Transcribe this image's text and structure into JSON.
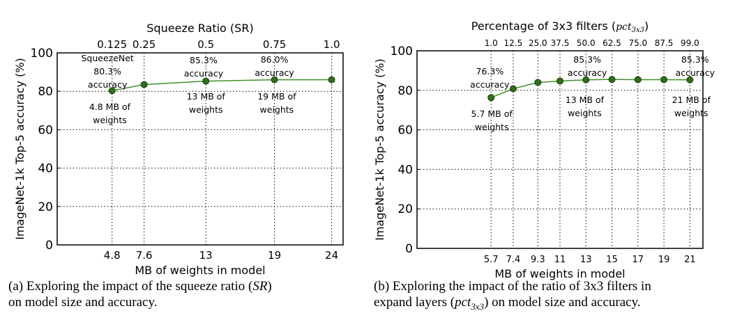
{
  "chart_data": [
    {
      "type": "line",
      "title": "",
      "top_axis_label": "Squeeze Ratio (SR)",
      "top_tick_labels": [
        "0.125",
        "0.25",
        "0.5",
        "0.75",
        "1.0"
      ],
      "xlabel": "MB of weights in model",
      "ylabel": "ImageNet-1k Top-5 accuracy (%)",
      "x": [
        4.8,
        7.6,
        13,
        19,
        24
      ],
      "x_tick_labels": [
        "4.8",
        "7.6",
        "13",
        "19",
        "24"
      ],
      "y": [
        80.3,
        83.5,
        85.3,
        86.0,
        86.0
      ],
      "xlim": [
        0,
        25
      ],
      "ylim": [
        0,
        100
      ],
      "yticks": [
        0,
        20,
        40,
        60,
        80,
        100
      ],
      "grid": true,
      "series_color": "#3f8f2a",
      "marker_color": "#2f6f1a",
      "annotations": [
        {
          "lines": [
            "SqueezeNet",
            "80.3%",
            "accuracy"
          ],
          "x": 4.4,
          "y": 95.7
        },
        {
          "lines": [
            "4.8 MB of",
            "weights"
          ],
          "x": 4.6,
          "y": 70.3
        },
        {
          "lines": [
            "85.3%",
            "accuracy"
          ],
          "x": 12.8,
          "y": 94.6
        },
        {
          "lines": [
            "13 MB of",
            "weights"
          ],
          "x": 13.0,
          "y": 75.7
        },
        {
          "lines": [
            "86.0%",
            "accuracy"
          ],
          "x": 19.0,
          "y": 94.9
        },
        {
          "lines": [
            "19 MB of",
            "weights"
          ],
          "x": 19.2,
          "y": 75.7
        }
      ],
      "caption": {
        "prefix": "(a) Exploring the impact of the squeeze ratio (",
        "math": "SR",
        "suffix": ")",
        "line2": "on model size and accuracy."
      }
    },
    {
      "type": "line",
      "title": "",
      "top_axis_label": "Percentage of 3x3 filters (",
      "top_axis_math": "pct",
      "top_axis_sub": "3x3",
      "top_axis_close": ")",
      "top_tick_labels": [
        "1.0",
        "12.5",
        "25.0",
        "37.5",
        "50.0",
        "62.5",
        "75.0",
        "87.5",
        "99.0"
      ],
      "xlabel": "MB of weights in model",
      "ylabel": "ImageNet-1k Top-5 accuracy (%)",
      "x": [
        5.7,
        7.4,
        9.3,
        11,
        13,
        15,
        17,
        19,
        21
      ],
      "x_tick_labels": [
        "5.7",
        "7.4",
        "9.3",
        "11",
        "13",
        "15",
        "17",
        "19",
        "21"
      ],
      "y": [
        76.3,
        80.8,
        84.0,
        84.7,
        85.3,
        85.5,
        85.4,
        85.4,
        85.3
      ],
      "xlim": [
        0,
        22
      ],
      "ylim": [
        0,
        100
      ],
      "yticks": [
        0,
        20,
        40,
        60,
        80,
        100
      ],
      "grid": true,
      "series_color": "#3f8f2a",
      "marker_color": "#2f6f1a",
      "annotations": [
        {
          "lines": [
            "76.3%",
            "accuracy"
          ],
          "x": 5.6,
          "y": 88.0
        },
        {
          "lines": [
            "5.7 MB of",
            "weights"
          ],
          "x": 5.75,
          "y": 66.5
        },
        {
          "lines": [
            "85.3%",
            "accuracy"
          ],
          "x": 13.1,
          "y": 94.0
        },
        {
          "lines": [
            "13 MB of",
            "weights"
          ],
          "x": 12.9,
          "y": 73.6
        },
        {
          "lines": [
            "85.3%",
            "accuracy"
          ],
          "x": 21.4,
          "y": 94.0
        },
        {
          "lines": [
            "21 MB of",
            "weights"
          ],
          "x": 21.1,
          "y": 73.6
        }
      ],
      "caption": {
        "prefix": "(b) Exploring the impact of the ratio of 3x3 filters in",
        "line2_prefix": "expand layers (",
        "math": "pct",
        "sub": "3x3",
        "suffix": ") on model size and accuracy."
      }
    }
  ]
}
